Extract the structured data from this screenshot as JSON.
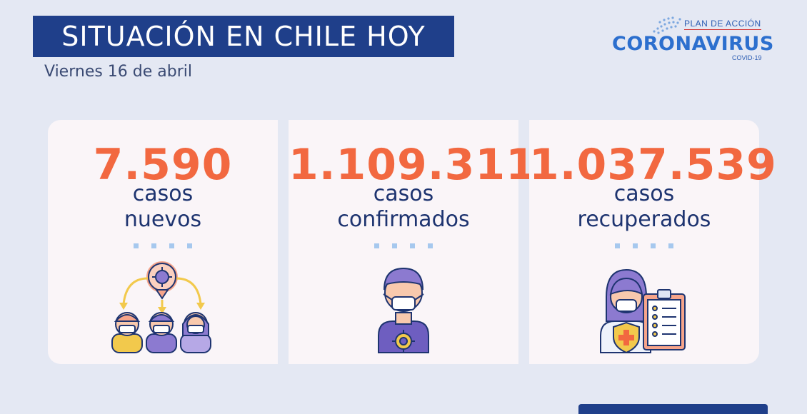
{
  "header": {
    "title": "SITUACIÓN EN CHILE HOY",
    "date": "Viernes 16 de abril"
  },
  "logo": {
    "plan": "PLAN DE ACCIÓN",
    "name": "CORONAVIRUS",
    "sub": "COVID-19"
  },
  "cards": [
    {
      "value": "7.590",
      "line1": "casos",
      "line2": "nuevos",
      "icon": "contagion-icon"
    },
    {
      "value": "1.109.311",
      "line1": "casos",
      "line2": "confirmados",
      "icon": "masked-man-icon"
    },
    {
      "value": "1.037.539",
      "line1": "casos",
      "line2": "recuperados",
      "icon": "recovered-doctor-icon"
    }
  ],
  "colors": {
    "navy": "#1f3f8a",
    "accent": "#f26840",
    "background": "#e4e8f3",
    "card": "#faf5f8"
  }
}
